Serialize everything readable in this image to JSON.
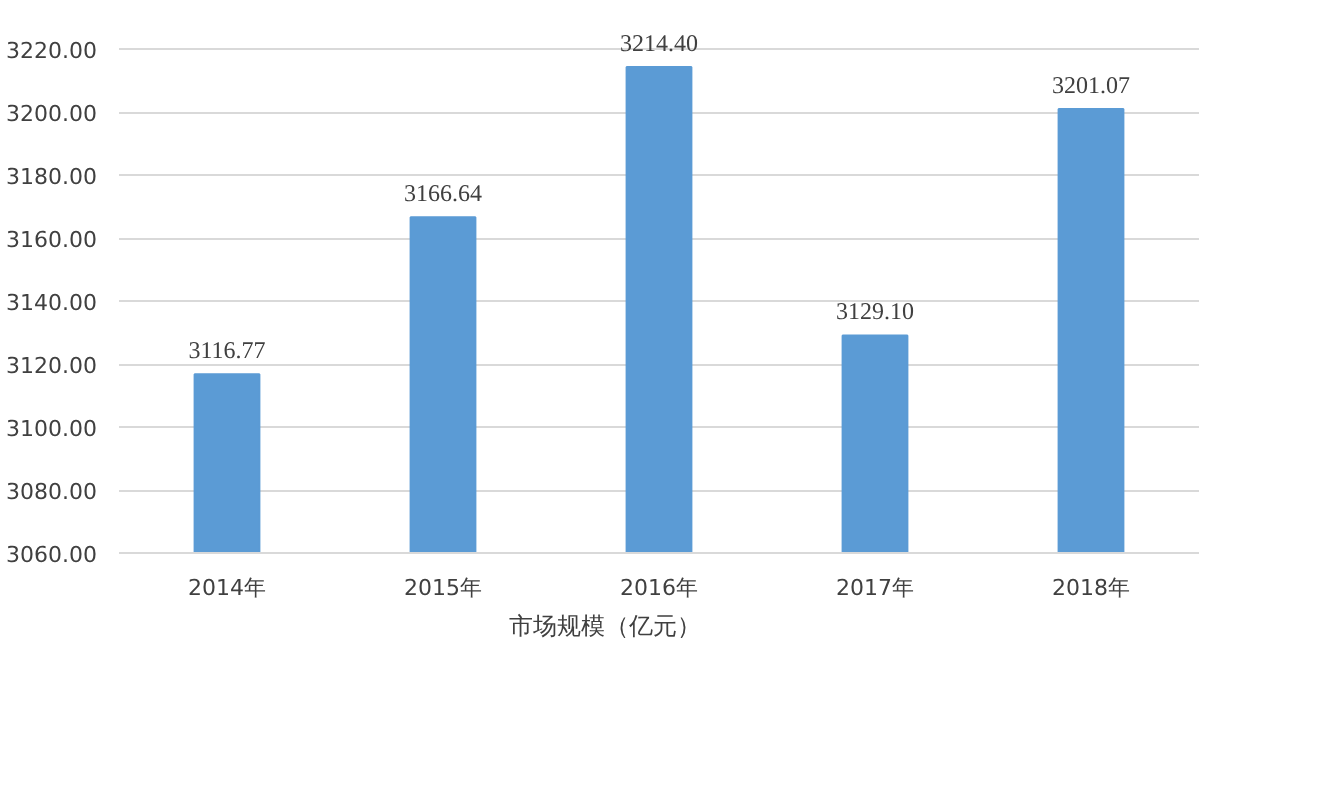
{
  "chart_data": {
    "type": "bar",
    "categories": [
      "2014年",
      "2015年",
      "2016年",
      "2017年",
      "2018年"
    ],
    "series": [
      {
        "name": "市场规模（亿元）",
        "color": "#5b9bd5",
        "values": [
          3116.77,
          3166.64,
          3214.4,
          3129.1,
          3201.07
        ],
        "value_labels": [
          "3116.77",
          "3166.64",
          "3214.40",
          "3129.10",
          "3201.07"
        ]
      }
    ],
    "ylim": [
      3060,
      3220
    ],
    "yticks": [
      {
        "value": 3060,
        "label": "3060.00"
      },
      {
        "value": 3080,
        "label": "3080.00"
      },
      {
        "value": 3100,
        "label": "3100.00"
      },
      {
        "value": 3120,
        "label": "3120.00"
      },
      {
        "value": 3140,
        "label": "3140.00"
      },
      {
        "value": 3160,
        "label": "3160.00"
      },
      {
        "value": 3180,
        "label": "3180.00"
      },
      {
        "value": 3200,
        "label": "3200.00"
      },
      {
        "value": 3220,
        "label": "3220.00"
      }
    ],
    "grid": "y",
    "legend": "bottom"
  }
}
